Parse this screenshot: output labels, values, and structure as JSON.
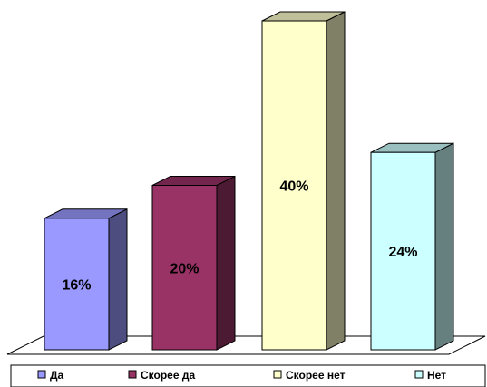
{
  "chart_data": {
    "type": "bar",
    "categories": [
      "Да",
      "Скорее да",
      "Скорее нет",
      "Нет"
    ],
    "values": [
      16,
      20,
      40,
      24
    ],
    "value_labels": [
      "16%",
      "20%",
      "40%",
      "24%"
    ],
    "unit": "%",
    "ylim": [
      0,
      40
    ],
    "grid": false,
    "three_d": true,
    "legend_position": "bottom",
    "colors": {
      "front": [
        "#9999ff",
        "#993366",
        "#ffffcc",
        "#ccffff"
      ],
      "side": [
        "#4d4d80",
        "#4d1a33",
        "#808066",
        "#668080"
      ],
      "top": [
        "#7373bf",
        "#73264d",
        "#bfbf99",
        "#99bfbf"
      ]
    },
    "legend": [
      {
        "label": "Да"
      },
      {
        "label": "Скорее да"
      },
      {
        "label": "Скорее нет"
      },
      {
        "label": "Нет"
      }
    ]
  }
}
